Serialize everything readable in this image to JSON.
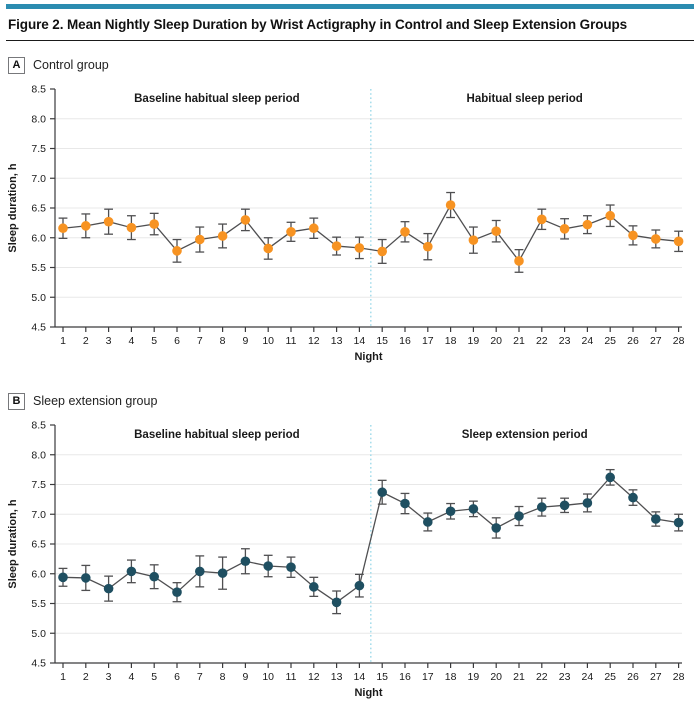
{
  "figure": {
    "title": "Figure 2. Mean Nightly Sleep Duration by Wrist Actigraphy in Control and Sleep Extension Groups"
  },
  "style": {
    "top_rule_color": "#2b8cb0",
    "control_point_color": "#f79322",
    "extension_point_color": "#1f4f61",
    "line_color": "#4f4f51",
    "grid_color": "#e8e8e8",
    "axis_color": "#3a3a3c",
    "divider_color": "#9edaea",
    "tick_label_color": "#1a1a1a"
  },
  "chart_data": [
    {
      "type": "line",
      "panel": "A",
      "panel_label": "Control group",
      "left_period_label": "Baseline habitual sleep period",
      "right_period_label": "Habitual sleep period",
      "divider_x": 14.5,
      "point_color": "#f79322",
      "xlabel": "Night",
      "ylabel": "Sleep duration, h",
      "ylim": [
        4.5,
        8.5
      ],
      "ytick_step": 0.5,
      "x": [
        1,
        2,
        3,
        4,
        5,
        6,
        7,
        8,
        9,
        10,
        11,
        12,
        13,
        14,
        15,
        16,
        17,
        18,
        19,
        20,
        21,
        22,
        23,
        24,
        25,
        26,
        27,
        28
      ],
      "values": [
        6.16,
        6.2,
        6.27,
        6.17,
        6.23,
        5.78,
        5.97,
        6.03,
        6.3,
        5.82,
        6.1,
        6.16,
        5.86,
        5.83,
        5.77,
        6.1,
        5.85,
        6.55,
        5.96,
        6.11,
        5.61,
        6.31,
        6.15,
        6.22,
        6.37,
        6.04,
        5.98,
        5.94
      ],
      "errors": [
        0.17,
        0.2,
        0.21,
        0.2,
        0.18,
        0.19,
        0.21,
        0.2,
        0.18,
        0.18,
        0.16,
        0.17,
        0.15,
        0.18,
        0.2,
        0.17,
        0.22,
        0.21,
        0.22,
        0.18,
        0.19,
        0.17,
        0.17,
        0.15,
        0.18,
        0.16,
        0.15,
        0.17
      ]
    },
    {
      "type": "line",
      "panel": "B",
      "panel_label": "Sleep extension group",
      "left_period_label": "Baseline habitual sleep period",
      "right_period_label": "Sleep extension period",
      "divider_x": 14.5,
      "point_color": "#1f4f61",
      "xlabel": "Night",
      "ylabel": "Sleep duration, h",
      "ylim": [
        4.5,
        8.5
      ],
      "ytick_step": 0.5,
      "x": [
        1,
        2,
        3,
        4,
        5,
        6,
        7,
        8,
        9,
        10,
        11,
        12,
        13,
        14,
        15,
        16,
        17,
        18,
        19,
        20,
        21,
        22,
        23,
        24,
        25,
        26,
        27,
        28
      ],
      "values": [
        5.94,
        5.93,
        5.75,
        6.04,
        5.95,
        5.69,
        6.04,
        6.01,
        6.21,
        6.13,
        6.11,
        5.78,
        5.52,
        5.8,
        7.37,
        7.18,
        6.87,
        7.05,
        7.09,
        6.77,
        6.97,
        7.12,
        7.15,
        7.19,
        7.62,
        7.28,
        6.92,
        6.86
      ],
      "errors": [
        0.15,
        0.21,
        0.21,
        0.19,
        0.2,
        0.16,
        0.26,
        0.27,
        0.21,
        0.18,
        0.17,
        0.16,
        0.19,
        0.19,
        0.2,
        0.17,
        0.15,
        0.13,
        0.13,
        0.17,
        0.16,
        0.15,
        0.12,
        0.15,
        0.13,
        0.13,
        0.12,
        0.14
      ]
    }
  ]
}
